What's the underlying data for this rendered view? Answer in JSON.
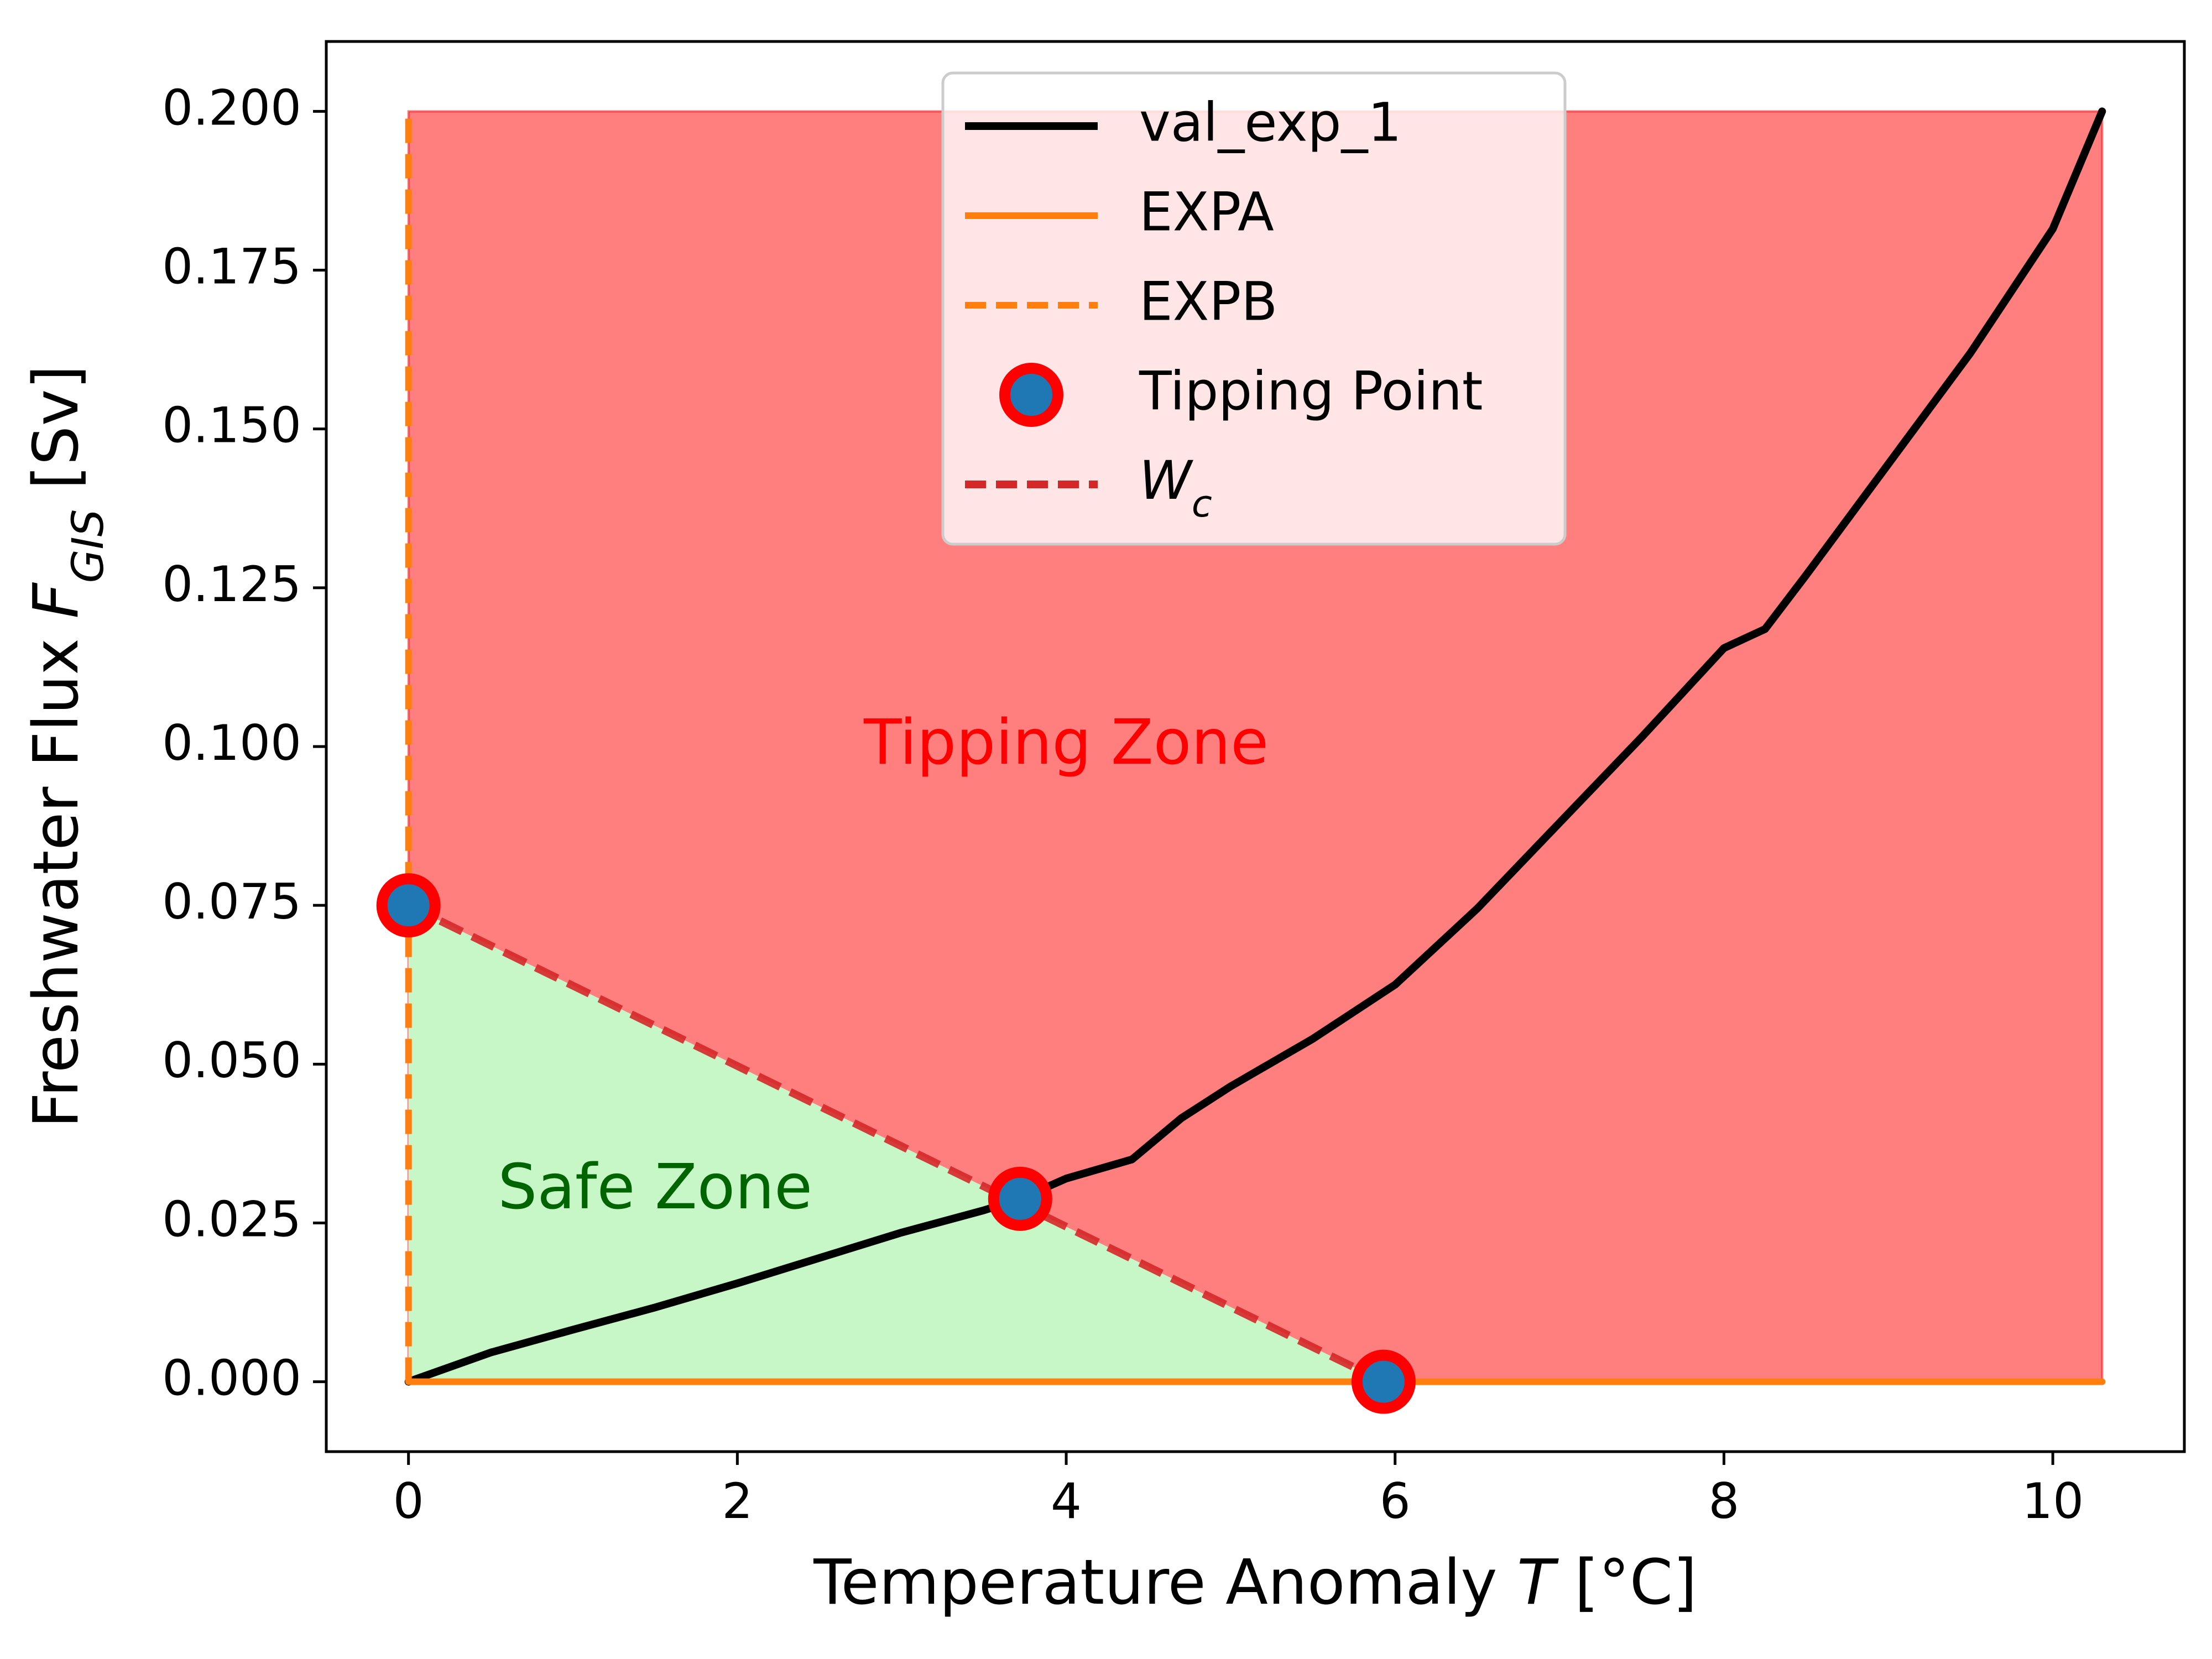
{
  "chart_data": {
    "type": "line",
    "xlabel": "Temperature Anomaly T [°C]",
    "ylabel": "Freshwater Flux F_GIS [Sv]",
    "xlim": [
      -0.5,
      10.8
    ],
    "ylim": [
      -0.011,
      0.211
    ],
    "x_ticks": [
      0,
      2,
      4,
      6,
      8,
      10
    ],
    "x_tick_labels": [
      "0",
      "2",
      "4",
      "6",
      "8",
      "10"
    ],
    "y_ticks": [
      0.0,
      0.025,
      0.05,
      0.075,
      0.1,
      0.125,
      0.15,
      0.175,
      0.2
    ],
    "y_tick_labels": [
      "0.000",
      "0.025",
      "0.050",
      "0.075",
      "0.100",
      "0.125",
      "0.150",
      "0.175",
      "0.200"
    ],
    "grid": false,
    "legend_position": "top-center",
    "series": [
      {
        "name": "val_exp_1",
        "color": "#000000",
        "style": "solid",
        "x": [
          0,
          0.5,
          1,
          1.5,
          2,
          2.5,
          3,
          3.5,
          3.72,
          4,
          4.4,
          4.7,
          5,
          5.5,
          6,
          6.5,
          7,
          7.5,
          8,
          8.25,
          8.5,
          9,
          9.5,
          10,
          10.3
        ],
        "y": [
          0,
          0.0046,
          0.0082,
          0.0117,
          0.0155,
          0.0195,
          0.0235,
          0.027,
          0.0288,
          0.032,
          0.035,
          0.0415,
          0.0465,
          0.054,
          0.0625,
          0.0745,
          0.088,
          0.1015,
          0.1155,
          0.1185,
          0.127,
          0.1445,
          0.162,
          0.1815,
          0.2
        ]
      },
      {
        "name": "EXPA",
        "color": "#ff7f0e",
        "style": "solid",
        "x": [
          0,
          10.3
        ],
        "y": [
          0,
          0
        ]
      },
      {
        "name": "EXPB",
        "color": "#ff7f0e",
        "style": "dashed",
        "x": [
          0,
          0
        ],
        "y": [
          0,
          0.2
        ]
      },
      {
        "name": "W_c",
        "color": "#d62728",
        "style": "dashed",
        "x": [
          0,
          5.93
        ],
        "y": [
          0.075,
          0
        ]
      }
    ],
    "tipping_points": {
      "name": "Tipping Point",
      "fill": "#1f77b4",
      "edge": "#ff0000",
      "points": [
        {
          "x": 0,
          "y": 0.075
        },
        {
          "x": 3.72,
          "y": 0.0288
        },
        {
          "x": 5.93,
          "y": 0
        }
      ]
    },
    "regions": [
      {
        "name": "Tipping Zone",
        "color": "#ff0000",
        "text_color": "#ff0000",
        "label_x": 4.0,
        "label_y": 0.1
      },
      {
        "name": "Safe Zone",
        "color": "#90ee90",
        "text_color": "#006400",
        "label_x": 1.5,
        "label_y": 0.03
      }
    ],
    "legend": [
      "val_exp_1",
      "EXPA",
      "EXPB",
      "Tipping Point",
      "W_c"
    ]
  }
}
